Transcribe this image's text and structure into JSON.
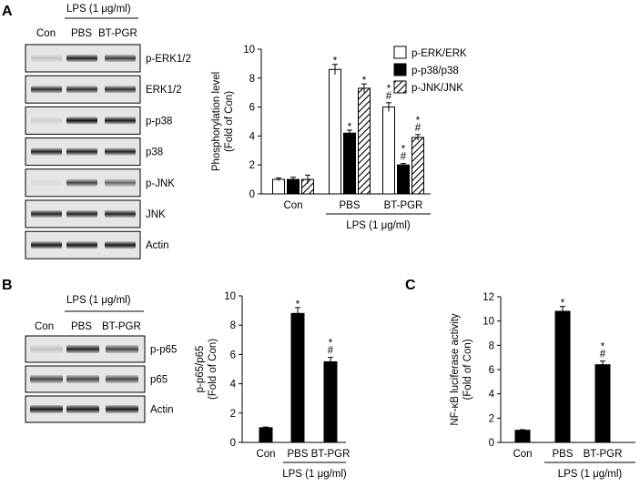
{
  "panels": {
    "A": "A",
    "B": "B",
    "C": "C"
  },
  "blot_a": {
    "lps_header": "LPS (1 μg/ml)",
    "lanes": [
      "Con",
      "PBS",
      "BT-PGR"
    ],
    "rows": [
      {
        "label": "p-ERK1/2",
        "bands": [
          0.15,
          0.85,
          0.75
        ]
      },
      {
        "label": "ERK1/2",
        "bands": [
          0.8,
          0.8,
          0.8
        ]
      },
      {
        "label": "p-p38",
        "bands": [
          0.1,
          0.95,
          0.9
        ]
      },
      {
        "label": "p38",
        "bands": [
          0.85,
          0.85,
          0.85
        ]
      },
      {
        "label": "p-JNK",
        "bands": [
          0.05,
          0.7,
          0.55
        ]
      },
      {
        "label": "JNK",
        "bands": [
          0.85,
          0.85,
          0.85
        ]
      },
      {
        "label": "Actin",
        "bands": [
          0.9,
          0.9,
          0.9
        ]
      }
    ]
  },
  "blot_b": {
    "lps_header": "LPS (1 μg/ml)",
    "lanes": [
      "Con",
      "PBS",
      "BT-PGR"
    ],
    "rows": [
      {
        "label": "p-p65",
        "bands": [
          0.15,
          0.85,
          0.7
        ]
      },
      {
        "label": "p65",
        "bands": [
          0.7,
          0.7,
          0.7
        ]
      },
      {
        "label": "Actin",
        "bands": [
          0.9,
          0.9,
          0.9
        ]
      }
    ]
  },
  "chart_data": [
    {
      "type": "bar",
      "ylabel": "Phosphorylation level",
      "ylabel2": "(Fold of Con)",
      "ylim": [
        0,
        10
      ],
      "yticks": [
        0,
        2,
        4,
        6,
        8,
        10
      ],
      "categories": [
        "Con",
        "PBS",
        "BT-PGR"
      ],
      "xgroup_label": "LPS (1 μg/ml)",
      "legend_position": "top-right",
      "series": [
        {
          "name": "p-ERK/ERK",
          "fill": "white",
          "values": [
            1.0,
            8.6,
            6.0
          ],
          "errors": [
            0.1,
            0.35,
            0.3
          ],
          "marks": [
            "",
            "*",
            "*\n#"
          ]
        },
        {
          "name": "p-p38/p38",
          "fill": "black",
          "values": [
            1.0,
            4.2,
            2.0
          ],
          "errors": [
            0.15,
            0.2,
            0.1
          ],
          "marks": [
            "",
            "*",
            "*\n#"
          ]
        },
        {
          "name": "p-JNK/JNK",
          "fill": "hatched",
          "values": [
            1.0,
            7.3,
            3.9
          ],
          "errors": [
            0.3,
            0.3,
            0.2
          ],
          "marks": [
            "",
            "*",
            "*\n#"
          ]
        }
      ]
    },
    {
      "type": "bar",
      "ylabel": "p-p65/p65",
      "ylabel2": "(Fold of Con)",
      "ylim": [
        0,
        10
      ],
      "yticks": [
        0,
        2,
        4,
        6,
        8,
        10
      ],
      "categories": [
        "Con",
        "PBS",
        "BT-PGR"
      ],
      "xgroup_label": "LPS (1 μg/ml)",
      "series": [
        {
          "values": [
            1.0,
            8.8,
            5.5
          ],
          "errors": [
            0.05,
            0.4,
            0.3
          ],
          "marks": [
            "",
            "*",
            "*\n#"
          ]
        }
      ]
    },
    {
      "type": "bar",
      "ylabel": "NF-κB luciferase activity",
      "ylabel2": "(Fold of Con)",
      "ylim": [
        0,
        12
      ],
      "yticks": [
        0,
        2,
        4,
        6,
        8,
        10,
        12
      ],
      "categories": [
        "Con",
        "PBS",
        "BT-PGR"
      ],
      "xgroup_label": "LPS (1 μg/ml)",
      "series": [
        {
          "values": [
            1.0,
            10.8,
            6.4
          ],
          "errors": [
            0.05,
            0.4,
            0.3
          ],
          "marks": [
            "",
            "*",
            "*\n#"
          ]
        }
      ]
    }
  ]
}
